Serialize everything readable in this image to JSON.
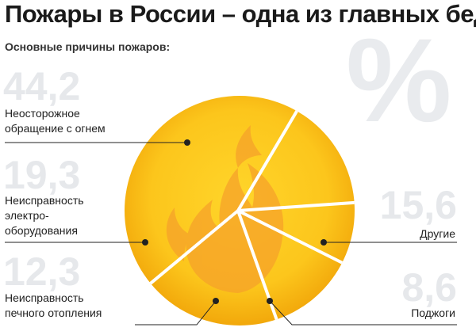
{
  "title": "Пожары в России – одна из главных бед",
  "subtitle": "Основные причины пожаров:",
  "unit_symbol": "%",
  "colors": {
    "disc_outer": "#f2a80b",
    "disc_inner": "#ffd52a",
    "flame": "#f6a22a",
    "divider": "#ffffff",
    "leader": "#222222",
    "value_text": "#e6e8eb"
  },
  "chart_data": {
    "type": "pie",
    "title": "Основные причины пожаров:",
    "unit": "%",
    "legend": "none",
    "slices": [
      {
        "label": "Неосторожное обращение с огнем",
        "value": 44.2,
        "value_label": "44,2",
        "label_lines": [
          "Неосторожное",
          "обращение с огнем"
        ]
      },
      {
        "label": "Неисправность электрооборудования",
        "value": 19.3,
        "value_label": "19,3",
        "label_lines": [
          "Неисправность",
          "электро-",
          "оборудования"
        ]
      },
      {
        "label": "Неисправность печного отопления",
        "value": 12.3,
        "value_label": "12,3",
        "label_lines": [
          "Неисправность",
          "печного отопления"
        ]
      },
      {
        "label": "Поджоги",
        "value": 8.6,
        "value_label": "8,6",
        "label_lines": [
          "Поджоги"
        ]
      },
      {
        "label": "Другие",
        "value": 15.6,
        "value_label": "15,6",
        "label_lines": [
          "Другие"
        ]
      }
    ]
  }
}
